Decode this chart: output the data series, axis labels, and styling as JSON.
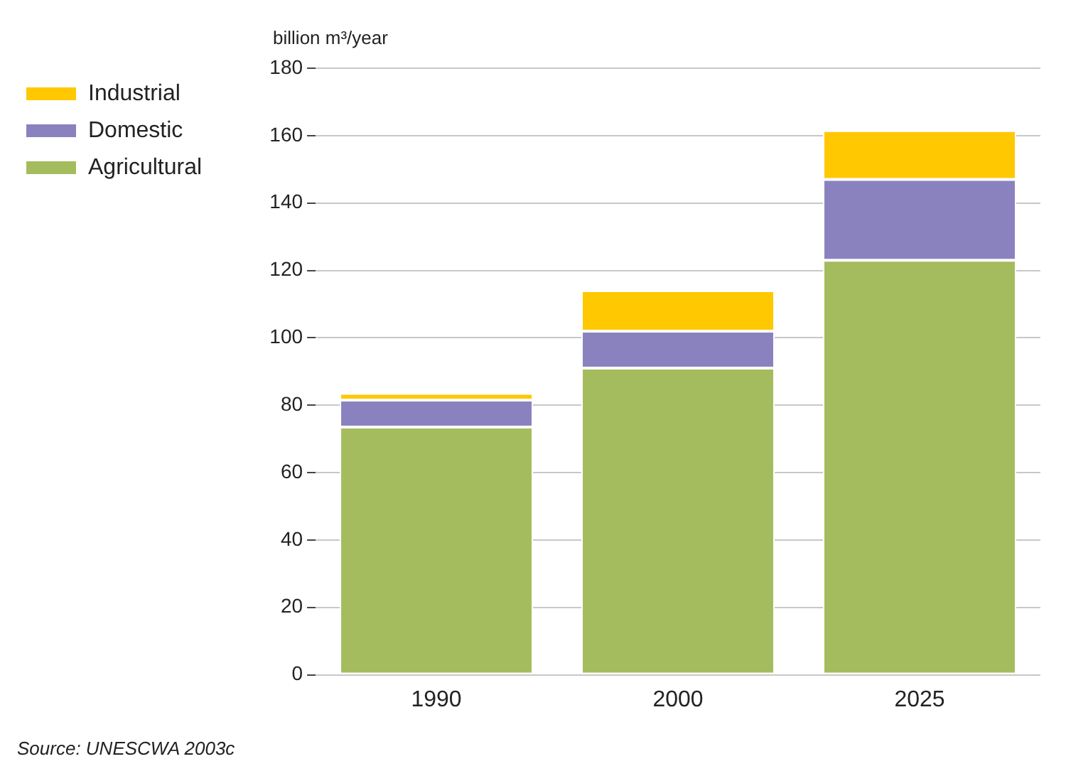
{
  "chart_data": {
    "type": "bar",
    "stacked": true,
    "ylabel": "billion m³/year",
    "categories": [
      "1990",
      "2000",
      "2025"
    ],
    "series": [
      {
        "name": "Agricultural",
        "color": "#a5bc5e",
        "values": [
          73.5,
          91,
          123
        ]
      },
      {
        "name": "Domestic",
        "color": "#8a82bf",
        "values": [
          8,
          11,
          24
        ]
      },
      {
        "name": "Industrial",
        "color": "#ffc800",
        "values": [
          2,
          12,
          14.5
        ]
      }
    ],
    "ylim": [
      0,
      180
    ],
    "yticks": [
      0,
      20,
      40,
      60,
      80,
      100,
      120,
      140,
      160,
      180
    ],
    "grid": "y",
    "legend": "top left",
    "annotations": [
      "Source: UNESCWA 2003c"
    ]
  }
}
